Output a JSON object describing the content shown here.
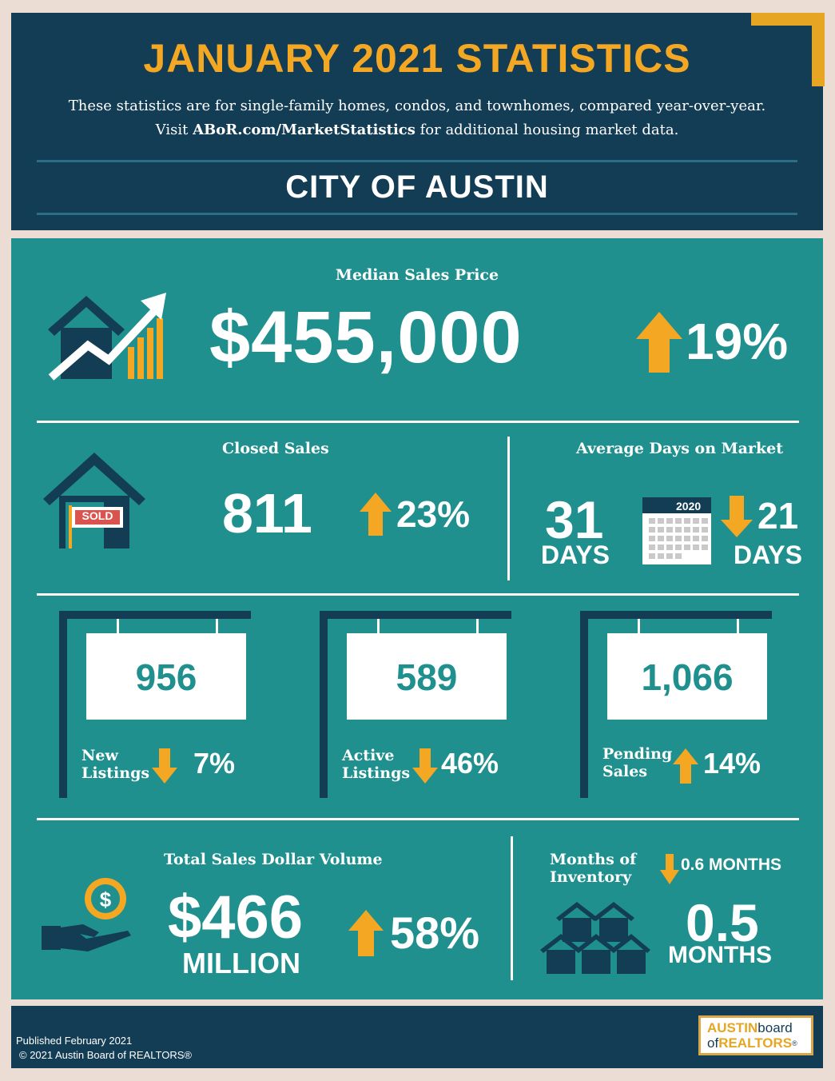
{
  "header": {
    "title": "JANUARY 2021 STATISTICS",
    "subtitle_line1": "These statistics are for single-family homes, condos, and townhomes, compared year-over-year.",
    "subtitle_visit": "Visit ",
    "subtitle_link": "ABoR.com/MarketStatistics",
    "subtitle_rest": " for additional housing market data.",
    "city": "CITY OF AUSTIN"
  },
  "median": {
    "label": "Median Sales Price",
    "value": "$455,000",
    "change": "19%",
    "direction": "up"
  },
  "closed_sales": {
    "label": "Closed Sales",
    "value": "811",
    "change": "23%",
    "sold_sign": "SOLD"
  },
  "days_on_market": {
    "label": "Average Days on Market",
    "value": "31",
    "unit": "DAYS",
    "calendar_year": "2020",
    "change": "21",
    "change_unit": "DAYS"
  },
  "listings": [
    {
      "value": "956",
      "label_line1": "New",
      "label_line2": "Listings",
      "change": "7%",
      "direction": "down"
    },
    {
      "value": "589",
      "label_line1": "Active",
      "label_line2": "Listings",
      "change": "46%",
      "direction": "down"
    },
    {
      "value": "1,066",
      "label_line1": "Pending",
      "label_line2": "Sales",
      "change": "14%",
      "direction": "up"
    }
  ],
  "volume": {
    "label": "Total Sales Dollar Volume",
    "value": "$466",
    "unit": "MILLION",
    "change": "58%"
  },
  "inventory": {
    "label_line1": "Months of",
    "label_line2": "Inventory",
    "change": "0.6 MONTHS",
    "value": "0.5",
    "unit": "MONTHS"
  },
  "footer": {
    "published": "Published February 2021",
    "copyright": "© 2021 Austin Board of REALTORS®",
    "logo_line1_a": "AUSTIN",
    "logo_line1_b": "board",
    "logo_line2_a": "of",
    "logo_line2_b": "REALTORS",
    "logo_reg": "®"
  },
  "colors": {
    "navy": "#133d55",
    "teal": "#20908f",
    "gold": "#f3a723",
    "white": "#ffffff"
  }
}
